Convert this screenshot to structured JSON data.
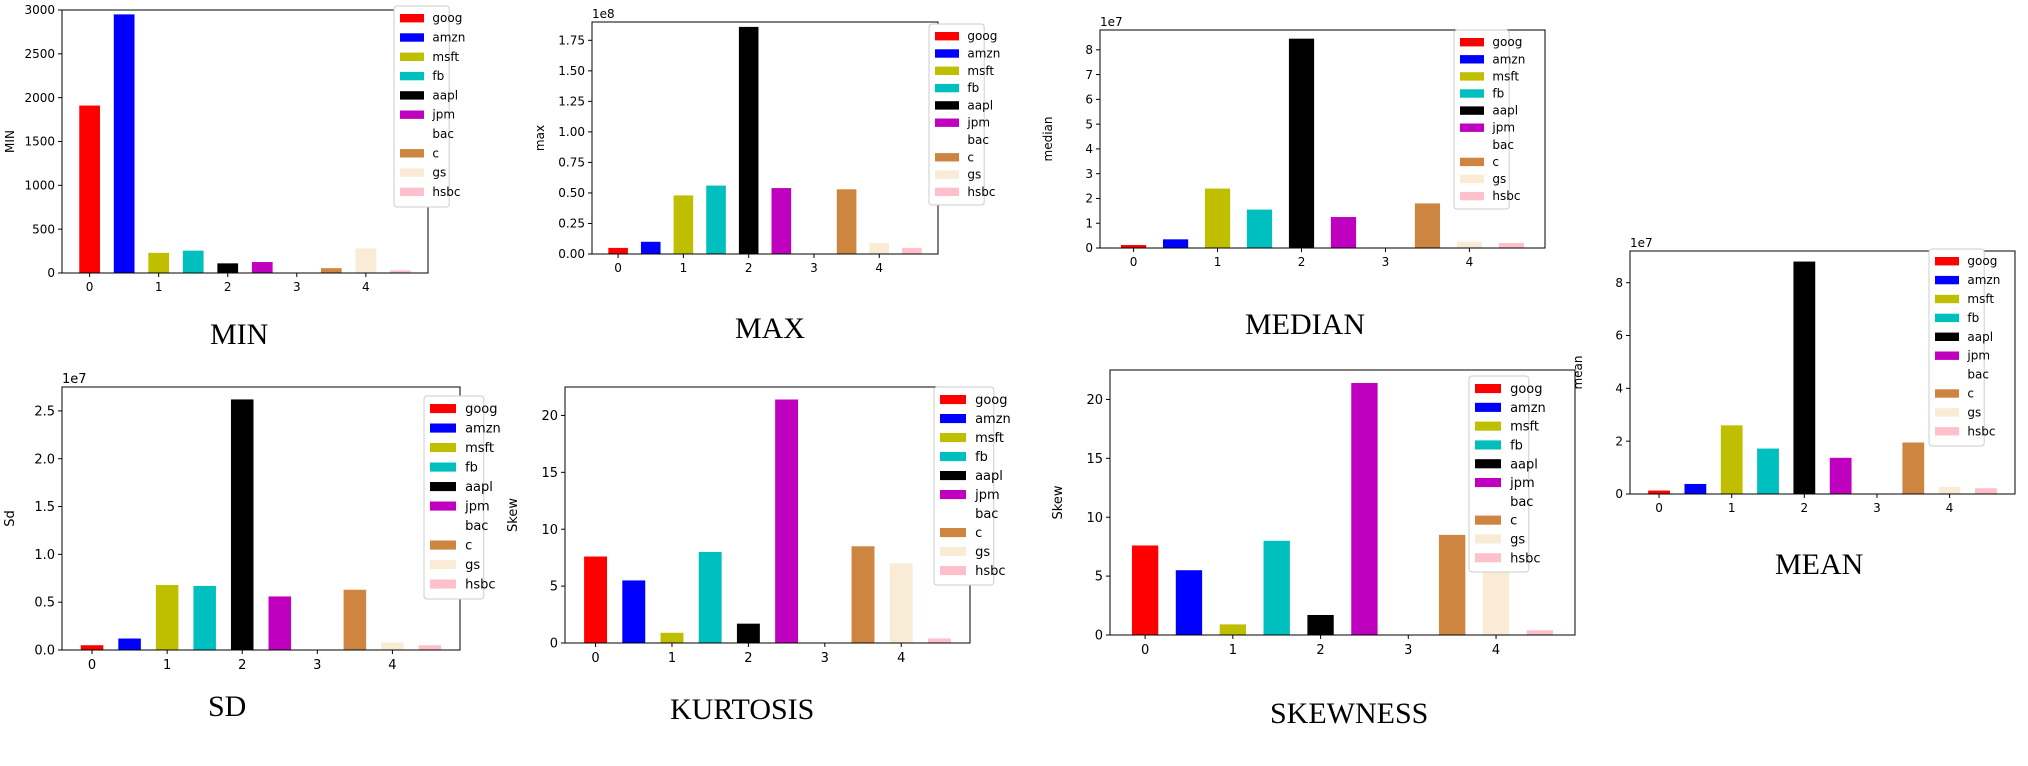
{
  "colors": {
    "goog": "#ff0000",
    "amzn": "#0000ff",
    "msft": "#bfbf00",
    "fb": "#00bfbf",
    "aapl": "#000000",
    "jpm": "#bf00bf",
    "bac": "#ffffff",
    "c": "#cd853f",
    "gs": "#faebd7",
    "hsbc": "#ffc0cb"
  },
  "legend": [
    "goog",
    "amzn",
    "msft",
    "fb",
    "aapl",
    "jpm",
    "bac",
    "c",
    "gs",
    "hsbc"
  ],
  "captions": {
    "min": "MIN",
    "max": "MAX",
    "median": "MEDIAN",
    "mean": "MEAN",
    "sd": "SD",
    "kurtosis": "KURTOSIS",
    "skewness": "SKEWNESS"
  },
  "chart_data": [
    {
      "id": "min",
      "type": "bar",
      "title": "",
      "xlabel": "",
      "ylabel": "MIN",
      "offset_text": "",
      "xticks": [
        "0",
        "1",
        "2",
        "3",
        "4"
      ],
      "ylim": [
        0,
        3000
      ],
      "yticks": [
        "0",
        "500",
        "1000",
        "1500",
        "2000",
        "2500",
        "3000"
      ],
      "legend_position": "top-right",
      "series": [
        {
          "name": "goog",
          "value": 1910
        },
        {
          "name": "amzn",
          "value": 2950
        },
        {
          "name": "msft",
          "value": 230
        },
        {
          "name": "fb",
          "value": 255
        },
        {
          "name": "aapl",
          "value": 110
        },
        {
          "name": "jpm",
          "value": 125
        },
        {
          "name": "bac",
          "value": 25
        },
        {
          "name": "c",
          "value": 55
        },
        {
          "name": "gs",
          "value": 280
        },
        {
          "name": "hsbc",
          "value": 30
        }
      ]
    },
    {
      "id": "max",
      "type": "bar",
      "title": "",
      "xlabel": "",
      "ylabel": "max",
      "offset_text": "1e8",
      "xticks": [
        "0",
        "1",
        "2",
        "3",
        "4"
      ],
      "ylim": [
        0,
        1.9
      ],
      "yticks": [
        "0.00",
        "0.25",
        "0.50",
        "0.75",
        "1.00",
        "1.25",
        "1.50",
        "1.75"
      ],
      "legend_position": "top-right",
      "series": [
        {
          "name": "goog",
          "value": 0.05
        },
        {
          "name": "amzn",
          "value": 0.1
        },
        {
          "name": "msft",
          "value": 0.48
        },
        {
          "name": "fb",
          "value": 0.56
        },
        {
          "name": "aapl",
          "value": 1.86
        },
        {
          "name": "jpm",
          "value": 0.54
        },
        {
          "name": "bac",
          "value": 0.0
        },
        {
          "name": "c",
          "value": 0.53
        },
        {
          "name": "gs",
          "value": 0.09
        },
        {
          "name": "hsbc",
          "value": 0.05
        }
      ]
    },
    {
      "id": "median",
      "type": "bar",
      "title": "",
      "xlabel": "",
      "ylabel": "median",
      "offset_text": "1e7",
      "xticks": [
        "0",
        "1",
        "2",
        "3",
        "4"
      ],
      "ylim": [
        0,
        8.8
      ],
      "yticks": [
        "0",
        "1",
        "2",
        "3",
        "4",
        "5",
        "6",
        "7",
        "8"
      ],
      "legend_position": "top-right",
      "series": [
        {
          "name": "goog",
          "value": 0.12
        },
        {
          "name": "amzn",
          "value": 0.35
        },
        {
          "name": "msft",
          "value": 2.4
        },
        {
          "name": "fb",
          "value": 1.55
        },
        {
          "name": "aapl",
          "value": 8.45
        },
        {
          "name": "jpm",
          "value": 1.25
        },
        {
          "name": "bac",
          "value": 0.0
        },
        {
          "name": "c",
          "value": 1.8
        },
        {
          "name": "gs",
          "value": 0.25
        },
        {
          "name": "hsbc",
          "value": 0.2
        }
      ]
    },
    {
      "id": "mean",
      "type": "bar",
      "title": "",
      "xlabel": "",
      "ylabel": "mean",
      "offset_text": "1e7",
      "xticks": [
        "0",
        "1",
        "2",
        "3",
        "4"
      ],
      "ylim": [
        0,
        9.2
      ],
      "yticks": [
        "0",
        "2",
        "4",
        "6",
        "8"
      ],
      "legend_position": "top-right",
      "series": [
        {
          "name": "goog",
          "value": 0.13
        },
        {
          "name": "amzn",
          "value": 0.38
        },
        {
          "name": "msft",
          "value": 2.6
        },
        {
          "name": "fb",
          "value": 1.72
        },
        {
          "name": "aapl",
          "value": 8.8
        },
        {
          "name": "jpm",
          "value": 1.37
        },
        {
          "name": "bac",
          "value": 0.0
        },
        {
          "name": "c",
          "value": 1.95
        },
        {
          "name": "gs",
          "value": 0.27
        },
        {
          "name": "hsbc",
          "value": 0.22
        }
      ]
    },
    {
      "id": "sd",
      "type": "bar",
      "title": "",
      "xlabel": "",
      "ylabel": "Sd",
      "offset_text": "1e7",
      "xticks": [
        "0",
        "1",
        "2",
        "3",
        "4"
      ],
      "ylim": [
        0,
        2.75
      ],
      "yticks": [
        "0.0",
        "0.5",
        "1.0",
        "1.5",
        "2.0",
        "2.5"
      ],
      "legend_position": "top-right",
      "series": [
        {
          "name": "goog",
          "value": 0.05
        },
        {
          "name": "amzn",
          "value": 0.12
        },
        {
          "name": "msft",
          "value": 0.68
        },
        {
          "name": "fb",
          "value": 0.67
        },
        {
          "name": "aapl",
          "value": 2.62
        },
        {
          "name": "jpm",
          "value": 0.56
        },
        {
          "name": "bac",
          "value": 0.0
        },
        {
          "name": "c",
          "value": 0.63
        },
        {
          "name": "gs",
          "value": 0.08
        },
        {
          "name": "hsbc",
          "value": 0.05
        }
      ]
    },
    {
      "id": "kurtosis",
      "type": "bar",
      "title": "",
      "xlabel": "",
      "ylabel": "Skew",
      "offset_text": "",
      "xticks": [
        "0",
        "1",
        "2",
        "3",
        "4"
      ],
      "ylim": [
        0,
        22.5
      ],
      "yticks": [
        "0",
        "5",
        "10",
        "15",
        "20"
      ],
      "legend_position": "top-right",
      "series": [
        {
          "name": "goog",
          "value": 7.6
        },
        {
          "name": "amzn",
          "value": 5.5
        },
        {
          "name": "msft",
          "value": 0.9
        },
        {
          "name": "fb",
          "value": 8.0
        },
        {
          "name": "aapl",
          "value": 1.7
        },
        {
          "name": "jpm",
          "value": 21.4
        },
        {
          "name": "bac",
          "value": 0.0
        },
        {
          "name": "c",
          "value": 8.5
        },
        {
          "name": "gs",
          "value": 7.0
        },
        {
          "name": "hsbc",
          "value": 0.4
        }
      ]
    },
    {
      "id": "skewness",
      "type": "bar",
      "title": "",
      "xlabel": "",
      "ylabel": "Skew",
      "offset_text": "",
      "xticks": [
        "0",
        "1",
        "2",
        "3",
        "4"
      ],
      "ylim": [
        0,
        22.5
      ],
      "yticks": [
        "0",
        "5",
        "10",
        "15",
        "20"
      ],
      "legend_position": "top-right",
      "series": [
        {
          "name": "goog",
          "value": 7.6
        },
        {
          "name": "amzn",
          "value": 5.5
        },
        {
          "name": "msft",
          "value": 0.9
        },
        {
          "name": "fb",
          "value": 8.0
        },
        {
          "name": "aapl",
          "value": 1.7
        },
        {
          "name": "jpm",
          "value": 21.4
        },
        {
          "name": "bac",
          "value": 0.0
        },
        {
          "name": "c",
          "value": 8.5
        },
        {
          "name": "gs",
          "value": 7.0
        },
        {
          "name": "hsbc",
          "value": 0.4
        }
      ]
    }
  ]
}
